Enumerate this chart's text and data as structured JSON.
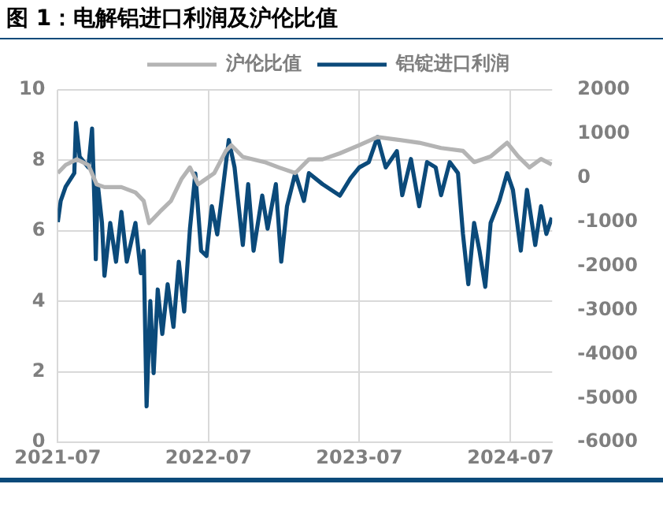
{
  "chart_data": {
    "type": "line",
    "title": "图 1：电解铝进口利润及沪伦比值",
    "xlim": [
      "2021-07-01",
      "2024-10-10"
    ],
    "xticks": [
      "2021-07",
      "2022-07",
      "2023-07",
      "2024-07"
    ],
    "ylim": [
      0,
      10
    ],
    "yticks": [
      0,
      2,
      4,
      6,
      8,
      10
    ],
    "y2lim": [
      -6000,
      2000
    ],
    "y2ticks": [
      -6000,
      -5000,
      -4000,
      -3000,
      -2000,
      -1000,
      0,
      1000,
      2000
    ],
    "grid": true,
    "legend": "top",
    "marker": "none",
    "line_style": "solid",
    "series": [
      {
        "name": "沪伦比值",
        "color": "#b4b4b4",
        "x": [
          "2021-07-01",
          "2021-07-20",
          "2021-08-16",
          "2021-09-13",
          "2021-10-03",
          "2021-10-22",
          "2021-12-02",
          "2022-01-05",
          "2022-01-25",
          "2022-02-07",
          "2022-03-05",
          "2022-04-01",
          "2022-04-27",
          "2022-05-17",
          "2022-06-06",
          "2022-07-15",
          "2022-08-12",
          "2022-08-25",
          "2022-09-22",
          "2022-11-14",
          "2022-12-18",
          "2023-01-27",
          "2023-03-01",
          "2023-04-03",
          "2023-05-15",
          "2023-07-01",
          "2023-08-14",
          "2023-09-30",
          "2023-11-23",
          "2024-01-15",
          "2024-03-08",
          "2024-04-04",
          "2024-05-14",
          "2024-06-23",
          "2024-07-20",
          "2024-08-16",
          "2024-09-13",
          "2024-10-09"
        ],
        "values": [
          7.64,
          7.87,
          8.03,
          7.87,
          7.32,
          7.24,
          7.24,
          7.09,
          6.85,
          6.22,
          6.54,
          6.85,
          7.48,
          7.8,
          7.32,
          7.64,
          8.27,
          8.43,
          8.1,
          7.95,
          7.8,
          7.64,
          8.03,
          8.03,
          8.2,
          8.43,
          8.66,
          8.59,
          8.5,
          8.35,
          8.27,
          7.95,
          8.11,
          8.5,
          8.11,
          7.8,
          8.04,
          7.88
        ]
      },
      {
        "name": "铝锭进口利润",
        "color": "#0b4a7a",
        "axis": "y2",
        "x": [
          "2021-07-01",
          "2021-07-08",
          "2021-07-20",
          "2021-08-10",
          "2021-08-14",
          "2021-08-23",
          "2021-09-13",
          "2021-09-22",
          "2021-09-28",
          "2021-10-01",
          "2021-10-06",
          "2021-10-16",
          "2021-10-22",
          "2021-11-05",
          "2021-11-19",
          "2021-12-02",
          "2021-12-15",
          "2022-01-05",
          "2022-01-18",
          "2022-01-25",
          "2022-02-01",
          "2022-02-10",
          "2022-02-18",
          "2022-02-28",
          "2022-03-11",
          "2022-03-24",
          "2022-04-07",
          "2022-04-20",
          "2022-05-03",
          "2022-05-17",
          "2022-05-30",
          "2022-06-13",
          "2022-06-26",
          "2022-07-09",
          "2022-07-22",
          "2022-08-06",
          "2022-08-19",
          "2022-09-02",
          "2022-09-22",
          "2022-10-05",
          "2022-10-18",
          "2022-11-08",
          "2022-11-21",
          "2022-12-11",
          "2022-12-24",
          "2023-01-07",
          "2023-01-27",
          "2023-02-17",
          "2023-03-01",
          "2023-04-03",
          "2023-05-15",
          "2023-06-10",
          "2023-07-01",
          "2023-07-24",
          "2023-08-14",
          "2023-09-03",
          "2023-09-30",
          "2023-10-13",
          "2023-11-03",
          "2023-11-23",
          "2023-12-12",
          "2024-01-02",
          "2024-01-15",
          "2024-02-05",
          "2024-02-25",
          "2024-03-08",
          "2024-03-21",
          "2024-04-04",
          "2024-04-17",
          "2024-05-01",
          "2024-05-14",
          "2024-06-04",
          "2024-06-23",
          "2024-07-07",
          "2024-07-26",
          "2024-08-10",
          "2024-08-30",
          "2024-09-13",
          "2024-09-26",
          "2024-10-09"
        ],
        "values": [
          -1000,
          -520,
          -200,
          110,
          1250,
          480,
          240,
          1120,
          -640,
          -1840,
          -160,
          -1020,
          -2220,
          -1020,
          -1900,
          -770,
          -1900,
          -1020,
          -2160,
          -1650,
          -5180,
          -2790,
          -4430,
          -2530,
          -3540,
          -2410,
          -3380,
          -1900,
          -3030,
          -1150,
          100,
          -1650,
          -1770,
          -640,
          -1280,
          -140,
          860,
          240,
          -1520,
          -140,
          -1650,
          -400,
          -1150,
          -140,
          -1900,
          -640,
          110,
          -520,
          110,
          -140,
          -400,
          0,
          240,
          360,
          930,
          240,
          610,
          -390,
          430,
          -640,
          360,
          240,
          -390,
          360,
          110,
          -1270,
          -2410,
          -1020,
          -1650,
          -2470,
          -1020,
          -520,
          110,
          -270,
          -1650,
          -270,
          -1520,
          -640,
          -1270,
          -900
        ]
      }
    ]
  }
}
